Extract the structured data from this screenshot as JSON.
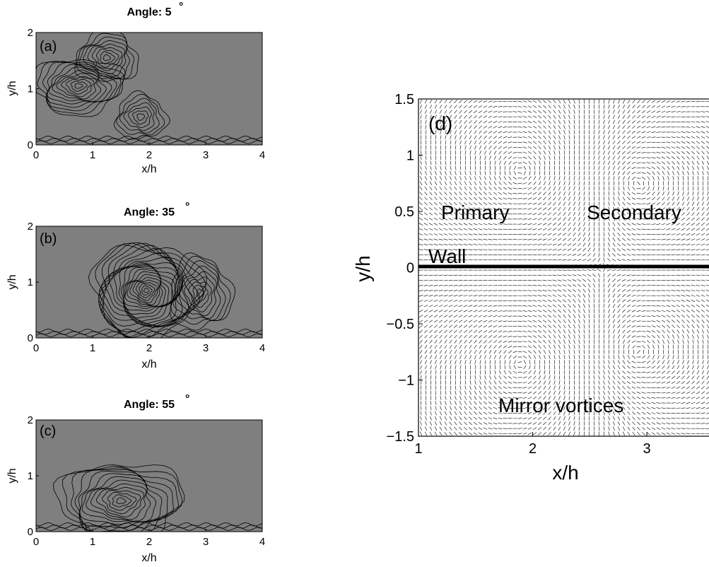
{
  "chart_data": [
    {
      "type": "contour",
      "panel": "a",
      "annotation": "(a)",
      "title_prefix": "Angle: ",
      "title_value": "5",
      "title_superscript": "°",
      "xlabel": "x/h",
      "ylabel": "y/h",
      "xlim": [
        0,
        4
      ],
      "ylim": [
        0,
        2
      ],
      "x_ticks": [
        "0",
        "1",
        "2",
        "3",
        "4"
      ],
      "y_ticks": [
        "0",
        "1",
        "2"
      ],
      "background_color": "#7f7f7f",
      "contour_centers": [
        {
          "x": 1.25,
          "y": 1.55,
          "levels": 9,
          "rx": 0.55,
          "ry": 0.45
        },
        {
          "x": 0.75,
          "y": 1.05,
          "levels": 12,
          "rx": 0.8,
          "ry": 0.5
        },
        {
          "x": 1.85,
          "y": 0.5,
          "levels": 7,
          "rx": 0.45,
          "ry": 0.4
        }
      ]
    },
    {
      "type": "contour",
      "panel": "b",
      "annotation": "(b)",
      "title_prefix": "Angle: ",
      "title_value": "35",
      "title_superscript": "°",
      "xlabel": "x/h",
      "ylabel": "y/h",
      "xlim": [
        0,
        4
      ],
      "ylim": [
        0,
        2
      ],
      "x_ticks": [
        "0",
        "1",
        "2",
        "3",
        "4"
      ],
      "y_ticks": [
        "0",
        "1",
        "2"
      ],
      "background_color": "#7f7f7f",
      "contour_centers": [
        {
          "x": 1.95,
          "y": 0.85,
          "levels": 22,
          "rx": 0.95,
          "ry": 0.85
        },
        {
          "x": 2.9,
          "y": 0.8,
          "levels": 9,
          "rx": 0.55,
          "ry": 0.65
        }
      ]
    },
    {
      "type": "contour",
      "panel": "c",
      "annotation": "(c)",
      "title_prefix": "Angle: ",
      "title_value": "55",
      "title_superscript": "°",
      "xlabel": "x/h",
      "ylabel": "y/h",
      "xlim": [
        0,
        4
      ],
      "ylim": [
        0,
        2
      ],
      "x_ticks": [
        "0",
        "1",
        "2",
        "3",
        "4"
      ],
      "y_ticks": [
        "0",
        "1",
        "2"
      ],
      "background_color": "#7f7f7f",
      "contour_centers": [
        {
          "x": 1.5,
          "y": 0.55,
          "levels": 14,
          "rx": 1.1,
          "ry": 0.7
        }
      ]
    },
    {
      "type": "vector-field",
      "panel": "d",
      "annotation": "(d)",
      "xlabel": "x/h",
      "ylabel": "y/h",
      "xlim": [
        1,
        3.6
      ],
      "ylim": [
        -1.5,
        1.5
      ],
      "x_ticks": [
        "1",
        "2",
        "3"
      ],
      "y_ticks": [
        "1.5",
        "1",
        "0.5",
        "0",
        "−0.5",
        "−1",
        "−1.5"
      ],
      "labels": {
        "primary": "Primary",
        "secondary": "Secondary",
        "wall": "Wall",
        "mirror": "Mirror vortices"
      },
      "vortices": [
        {
          "x": 1.9,
          "y": 0.85,
          "strength": -1
        },
        {
          "x": 2.9,
          "y": 0.75,
          "strength": 0.6
        },
        {
          "x": 1.9,
          "y": -0.85,
          "strength": 1
        },
        {
          "x": 2.9,
          "y": -0.75,
          "strength": -0.6
        }
      ],
      "wall_y": 0
    }
  ]
}
